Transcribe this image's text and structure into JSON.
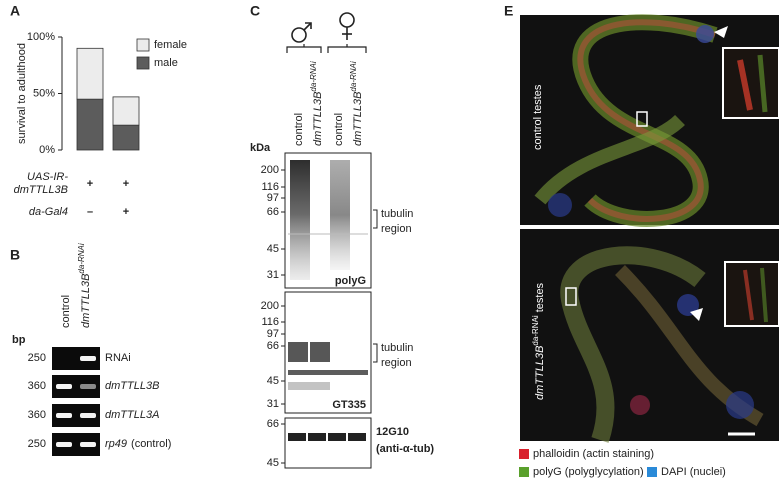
{
  "chart_data": {
    "type": "bar",
    "stacked": true,
    "ylabel": "survival to adulthood",
    "categories": [
      null,
      null
    ],
    "series": [
      {
        "name": "male",
        "color": "#5c5c5c",
        "values": [
          45,
          22
        ]
      },
      {
        "name": "female",
        "color": "#ececec",
        "values": [
          45,
          25
        ]
      }
    ],
    "ylim": [
      0,
      100
    ],
    "yticks": [
      {
        "value": 0,
        "label": "0%"
      },
      {
        "value": 50,
        "label": "50%"
      },
      {
        "value": 100,
        "label": "100%"
      }
    ]
  },
  "panel_a": {
    "label": "A",
    "genotype": [
      {
        "label": [
          "UAS-IR-",
          "dmTTLL3B"
        ],
        "cells": [
          "+",
          "+"
        ]
      },
      {
        "label": [
          "da-Gal4"
        ],
        "cells": [
          "–",
          "+"
        ]
      }
    ]
  },
  "panel_b": {
    "label": "B",
    "lanes": [
      {
        "name": "control"
      },
      {
        "name": "dmTTLL3B",
        "superscript": "da-RNAi"
      }
    ],
    "size_unit": "bp",
    "rows": [
      {
        "size": 250,
        "name": "RNAi"
      },
      {
        "size": 360,
        "name": "dmTTLL3B"
      },
      {
        "size": 360,
        "name": "dmTTLL3A"
      },
      {
        "size": 250,
        "name": "rp49",
        "note": "(control)"
      }
    ]
  },
  "panel_c": {
    "label": "C",
    "lanes": [
      {
        "name": "control"
      },
      {
        "name": "dmTTLL3B",
        "superscript": "da-RNAi"
      },
      {
        "name": "control"
      },
      {
        "name": "dmTTLL3B",
        "superscript": "da-RNAi"
      }
    ],
    "mw_unit": "kDa",
    "blots": [
      {
        "markers": [
          200,
          116,
          97,
          66,
          45,
          31
        ],
        "antibody": "polyG",
        "bracket": [
          "tubulin",
          "region"
        ]
      },
      {
        "markers": [
          200,
          116,
          97,
          66,
          45,
          31
        ],
        "antibody": "GT335",
        "bracket": [
          "tubulin",
          "region"
        ]
      },
      {
        "markers": [
          66,
          45
        ],
        "antibody": [
          "12G10",
          "(anti-α-tub)"
        ]
      }
    ]
  },
  "panel_e": {
    "label": "E",
    "images": [
      {
        "label": "control testes"
      },
      {
        "label": "dmTTLL3B",
        "superscript": "da-RNAi",
        "suffix": " testes"
      }
    ],
    "legend": [
      {
        "name": "phalloidin (actin staining)",
        "color": "#d9202c"
      },
      {
        "name": "polyG (polyglycylation)",
        "color": "#5aa02c"
      },
      {
        "name": "DAPI (nuclei)",
        "color": "#2a8ad8"
      }
    ]
  }
}
